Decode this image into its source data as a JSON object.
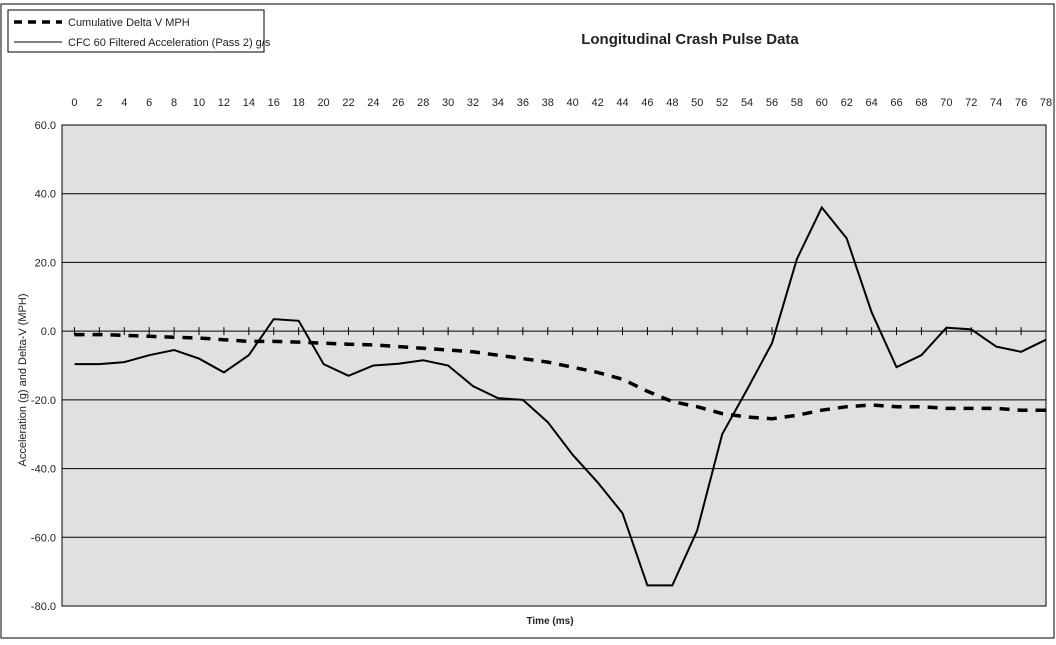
{
  "chart_data": {
    "type": "line",
    "title": "Longitudinal Crash Pulse Data",
    "x_label": "Time (ms)",
    "y_label": "Acceleration (g) and Delta-V (MPH)",
    "x": [
      0,
      2,
      4,
      6,
      8,
      10,
      12,
      14,
      16,
      18,
      20,
      22,
      24,
      26,
      28,
      30,
      32,
      34,
      36,
      38,
      40,
      42,
      44,
      46,
      48,
      50,
      52,
      54,
      56,
      58,
      60,
      62,
      64,
      66,
      68,
      70,
      72,
      74,
      76,
      78
    ],
    "series": [
      {
        "name": "Cumulative Delta V MPH",
        "color": "#000000",
        "dash": true,
        "values": [
          -1,
          -1,
          -1.2,
          -1.5,
          -1.8,
          -2,
          -2.5,
          -3,
          -3,
          -3.2,
          -3.5,
          -3.8,
          -4,
          -4.5,
          -5,
          -5.5,
          -6,
          -7,
          -8,
          -9,
          -10.5,
          -12,
          -14,
          -17.5,
          -20.5,
          -22,
          -24,
          -25,
          -25.5,
          -24.5,
          -23,
          -22,
          -21.5,
          -22,
          -22,
          -22.5,
          -22.5,
          -22.5,
          -23,
          -23
        ]
      },
      {
        "name": "CFC 60 Filtered Acceleration (Pass 2) g/s",
        "color": "#000000",
        "dash": false,
        "values": [
          -9.6,
          -9.6,
          -9,
          -7,
          -5.5,
          -8,
          -12,
          -7,
          3.5,
          3,
          -9.6,
          -13,
          -10,
          -9.5,
          -8.5,
          -10,
          -16,
          -19.5,
          -20,
          -26.5,
          -36,
          -44,
          -53,
          -74,
          -74,
          -58,
          -30,
          -17,
          -3.5,
          21,
          36,
          27,
          5.5,
          -10.5,
          -7,
          1,
          0.5,
          -4.5,
          -6,
          -2.5
        ]
      }
    ],
    "xlim": [
      -1,
      78
    ],
    "xticks": [
      0,
      2,
      4,
      6,
      8,
      10,
      12,
      14,
      16,
      18,
      20,
      22,
      24,
      26,
      28,
      30,
      32,
      34,
      36,
      38,
      40,
      42,
      44,
      46,
      48,
      50,
      52,
      54,
      56,
      58,
      60,
      62,
      64,
      66,
      68,
      70,
      72,
      74,
      76,
      78
    ],
    "ylim": [
      -80,
      60
    ],
    "yticks": [
      {
        "value": 60,
        "label": "60.0"
      },
      {
        "value": 40,
        "label": "40.0"
      },
      {
        "value": 20,
        "label": "20.0"
      },
      {
        "value": 0,
        "label": "0.0"
      },
      {
        "value": -20,
        "label": "-20.0"
      },
      {
        "value": -40,
        "label": "-40.0"
      },
      {
        "value": -60,
        "label": "-60.0"
      },
      {
        "value": -80,
        "label": "-80.0"
      }
    ],
    "grid": true,
    "legend": "top-left",
    "plot_background": "#e0e0e0"
  }
}
